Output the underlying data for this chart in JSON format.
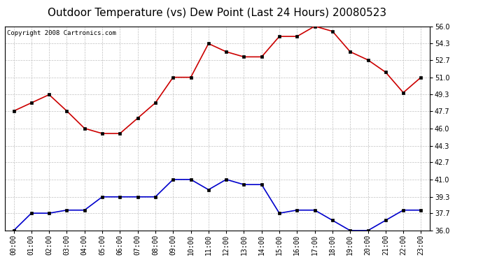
{
  "title": "Outdoor Temperature (vs) Dew Point (Last 24 Hours) 20080523",
  "copyright": "Copyright 2008 Cartronics.com",
  "hours": [
    "00:00",
    "01:00",
    "02:00",
    "03:00",
    "04:00",
    "05:00",
    "06:00",
    "07:00",
    "08:00",
    "09:00",
    "10:00",
    "11:00",
    "12:00",
    "13:00",
    "14:00",
    "15:00",
    "16:00",
    "17:00",
    "18:00",
    "19:00",
    "20:00",
    "21:00",
    "22:00",
    "23:00"
  ],
  "temp": [
    47.7,
    48.5,
    49.3,
    47.7,
    46.0,
    45.5,
    45.5,
    47.0,
    48.5,
    51.0,
    51.0,
    54.3,
    53.5,
    53.0,
    53.0,
    55.0,
    55.0,
    56.0,
    55.5,
    53.5,
    52.7,
    51.5,
    49.5,
    51.0
  ],
  "dew": [
    36.0,
    37.7,
    37.7,
    38.0,
    38.0,
    39.3,
    39.3,
    39.3,
    39.3,
    41.0,
    41.0,
    40.0,
    41.0,
    40.5,
    40.5,
    37.7,
    38.0,
    38.0,
    37.0,
    36.0,
    36.0,
    37.0,
    38.0,
    38.0
  ],
  "temp_color": "#cc0000",
  "dew_color": "#0000cc",
  "bg_color": "#ffffff",
  "grid_color": "#c0c0c0",
  "ylim_min": 36.0,
  "ylim_max": 56.0,
  "ytick_values": [
    36.0,
    37.7,
    39.3,
    41.0,
    42.7,
    44.3,
    46.0,
    47.7,
    49.3,
    51.0,
    52.7,
    54.3,
    56.0
  ],
  "marker": "s",
  "marker_size": 2.5,
  "linewidth": 1.2,
  "title_fontsize": 11,
  "tick_fontsize": 7,
  "copyright_fontsize": 6.5
}
